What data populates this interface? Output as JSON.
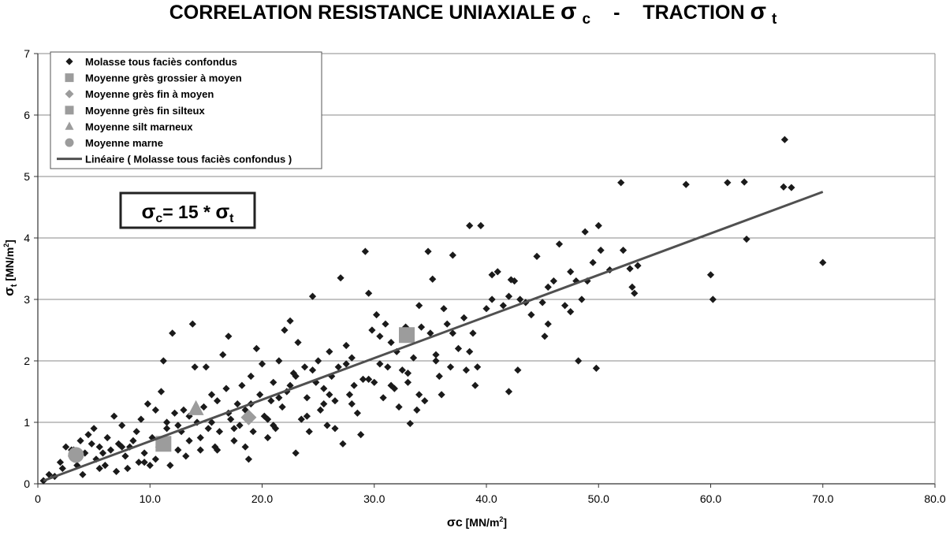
{
  "chart_data": {
    "type": "scatter",
    "title": {
      "part1": "CORRELATION  RESISTANCE UNIAXIALE",
      "sym1": "σ",
      "sub1": "c",
      "sep": "-",
      "part2": "TRACTION",
      "sym2": "σ",
      "sub2": "t"
    },
    "xlabel": {
      "sym": "σc",
      "text": " [MN/m",
      "sup": "2",
      "close": "]"
    },
    "ylabel": {
      "sym": "σ",
      "sub": "t",
      "text": " [MN/m",
      "sup": "2",
      "close": "]"
    },
    "xlim": [
      0,
      80
    ],
    "ylim": [
      0,
      7
    ],
    "x_ticks": [
      "0",
      "10.0",
      "20.0",
      "30.0",
      "40.0",
      "50.0",
      "60.0",
      "70.0",
      "80.0"
    ],
    "y_ticks": [
      "0",
      "1",
      "2",
      "3",
      "4",
      "5",
      "6",
      "7"
    ],
    "grid": "horizontal",
    "legend_position": "top-left",
    "annotation": {
      "sym": "σ",
      "sub": "c",
      "mid": "= 15 * ",
      "sym2": "σ",
      "sub2": "t"
    },
    "colors": {
      "molasse": "#1a1a1a",
      "moyenne": "#9c9c9c",
      "trend": "#505050"
    },
    "series": [
      {
        "name": " Molasse tous faciès confondus",
        "marker": "diamond",
        "points": [
          [
            0.5,
            0.05
          ],
          [
            1.0,
            0.15
          ],
          [
            1.5,
            0.12
          ],
          [
            2.0,
            0.35
          ],
          [
            2.2,
            0.25
          ],
          [
            2.5,
            0.6
          ],
          [
            3.0,
            0.45
          ],
          [
            3.2,
            0.55
          ],
          [
            3.5,
            0.3
          ],
          [
            3.8,
            0.7
          ],
          [
            4.0,
            0.15
          ],
          [
            4.2,
            0.5
          ],
          [
            4.5,
            0.8
          ],
          [
            4.8,
            0.65
          ],
          [
            5.0,
            0.9
          ],
          [
            5.2,
            0.4
          ],
          [
            5.5,
            0.6
          ],
          [
            5.8,
            0.5
          ],
          [
            6.0,
            0.3
          ],
          [
            6.2,
            0.75
          ],
          [
            6.5,
            0.55
          ],
          [
            6.8,
            1.1
          ],
          [
            7.0,
            0.2
          ],
          [
            7.2,
            0.65
          ],
          [
            7.5,
            0.95
          ],
          [
            7.8,
            0.45
          ],
          [
            8.0,
            0.25
          ],
          [
            8.2,
            0.6
          ],
          [
            8.5,
            0.7
          ],
          [
            8.8,
            0.85
          ],
          [
            9.0,
            0.35
          ],
          [
            9.2,
            1.05
          ],
          [
            9.5,
            0.5
          ],
          [
            9.8,
            1.3
          ],
          [
            10.0,
            0.3
          ],
          [
            10.2,
            0.75
          ],
          [
            10.5,
            1.2
          ],
          [
            10.8,
            0.6
          ],
          [
            11.0,
            1.5
          ],
          [
            11.2,
            2.0
          ],
          [
            11.5,
            0.9
          ],
          [
            11.8,
            0.3
          ],
          [
            12.0,
            2.45
          ],
          [
            12.2,
            1.15
          ],
          [
            12.5,
            0.55
          ],
          [
            12.8,
            0.85
          ],
          [
            13.0,
            1.2
          ],
          [
            13.2,
            0.45
          ],
          [
            13.5,
            0.7
          ],
          [
            13.8,
            2.6
          ],
          [
            14.0,
            1.9
          ],
          [
            14.2,
            1.0
          ],
          [
            14.5,
            0.55
          ],
          [
            14.8,
            1.25
          ],
          [
            15.0,
            1.9
          ],
          [
            15.2,
            0.9
          ],
          [
            15.5,
            1.45
          ],
          [
            15.8,
            0.6
          ],
          [
            16.0,
            1.35
          ],
          [
            16.2,
            0.85
          ],
          [
            16.5,
            2.1
          ],
          [
            16.8,
            1.55
          ],
          [
            17.0,
            2.4
          ],
          [
            17.2,
            1.05
          ],
          [
            17.5,
            0.7
          ],
          [
            17.8,
            1.3
          ],
          [
            18.0,
            0.95
          ],
          [
            18.2,
            1.6
          ],
          [
            18.5,
            1.2
          ],
          [
            18.8,
            0.4
          ],
          [
            19.0,
            1.75
          ],
          [
            19.2,
            0.85
          ],
          [
            19.5,
            2.2
          ],
          [
            19.8,
            1.45
          ],
          [
            20.0,
            1.95
          ],
          [
            20.2,
            1.1
          ],
          [
            20.5,
            0.75
          ],
          [
            20.8,
            1.35
          ],
          [
            21.0,
            1.65
          ],
          [
            21.2,
            0.9
          ],
          [
            21.5,
            2.0
          ],
          [
            21.8,
            1.25
          ],
          [
            22.0,
            2.5
          ],
          [
            22.2,
            1.5
          ],
          [
            22.5,
            2.65
          ],
          [
            22.8,
            1.8
          ],
          [
            23.0,
            0.5
          ],
          [
            23.2,
            2.3
          ],
          [
            23.5,
            1.05
          ],
          [
            23.8,
            1.9
          ],
          [
            24.0,
            1.4
          ],
          [
            24.2,
            0.85
          ],
          [
            24.5,
            3.05
          ],
          [
            24.8,
            1.65
          ],
          [
            25.0,
            2.0
          ],
          [
            25.2,
            1.2
          ],
          [
            25.5,
            1.55
          ],
          [
            25.8,
            0.95
          ],
          [
            26.0,
            2.15
          ],
          [
            26.2,
            1.75
          ],
          [
            26.5,
            1.35
          ],
          [
            26.8,
            1.9
          ],
          [
            27.0,
            3.35
          ],
          [
            27.2,
            0.65
          ],
          [
            27.5,
            2.25
          ],
          [
            27.8,
            1.45
          ],
          [
            28.0,
            2.05
          ],
          [
            28.2,
            1.6
          ],
          [
            28.5,
            1.15
          ],
          [
            28.8,
            0.8
          ],
          [
            29.0,
            1.7
          ],
          [
            29.2,
            3.78
          ],
          [
            29.5,
            3.1
          ],
          [
            29.8,
            2.5
          ],
          [
            30.0,
            1.65
          ],
          [
            30.2,
            2.75
          ],
          [
            30.5,
            2.4
          ],
          [
            30.8,
            1.4
          ],
          [
            31.0,
            2.6
          ],
          [
            31.2,
            1.9
          ],
          [
            31.5,
            2.3
          ],
          [
            31.8,
            1.55
          ],
          [
            32.0,
            2.15
          ],
          [
            32.2,
            1.25
          ],
          [
            32.5,
            1.85
          ],
          [
            32.8,
            2.55
          ],
          [
            33.0,
            1.65
          ],
          [
            33.2,
            0.98
          ],
          [
            33.5,
            2.05
          ],
          [
            33.8,
            1.2
          ],
          [
            34.0,
            2.9
          ],
          [
            34.2,
            2.55
          ],
          [
            34.5,
            1.35
          ],
          [
            34.8,
            3.78
          ],
          [
            35.0,
            2.45
          ],
          [
            35.2,
            3.33
          ],
          [
            35.5,
            2.0
          ],
          [
            35.8,
            1.75
          ],
          [
            36.0,
            1.45
          ],
          [
            36.2,
            2.85
          ],
          [
            36.5,
            2.6
          ],
          [
            36.8,
            1.9
          ],
          [
            37.0,
            3.72
          ],
          [
            37.5,
            2.2
          ],
          [
            38.0,
            2.7
          ],
          [
            38.2,
            1.85
          ],
          [
            38.5,
            4.2
          ],
          [
            38.8,
            2.45
          ],
          [
            39.0,
            1.6
          ],
          [
            39.2,
            1.9
          ],
          [
            39.5,
            4.2
          ],
          [
            40.0,
            2.85
          ],
          [
            40.5,
            3.4
          ],
          [
            41.0,
            3.45
          ],
          [
            41.5,
            2.9
          ],
          [
            42.0,
            1.5
          ],
          [
            42.2,
            3.32
          ],
          [
            42.5,
            3.3
          ],
          [
            42.8,
            1.85
          ],
          [
            43.0,
            3.0
          ],
          [
            44.0,
            2.75
          ],
          [
            44.5,
            3.7
          ],
          [
            45.0,
            2.95
          ],
          [
            45.2,
            2.4
          ],
          [
            45.5,
            2.6
          ],
          [
            46.0,
            3.3
          ],
          [
            46.5,
            3.9
          ],
          [
            47.0,
            2.9
          ],
          [
            47.5,
            3.45
          ],
          [
            48.0,
            3.3
          ],
          [
            48.2,
            2.0
          ],
          [
            48.5,
            3.0
          ],
          [
            48.8,
            4.1
          ],
          [
            49.0,
            3.3
          ],
          [
            49.5,
            3.6
          ],
          [
            49.8,
            1.88
          ],
          [
            50.0,
            4.2
          ],
          [
            50.2,
            3.8
          ],
          [
            51.0,
            3.48
          ],
          [
            52.0,
            4.9
          ],
          [
            52.2,
            3.8
          ],
          [
            52.8,
            3.5
          ],
          [
            53.0,
            3.2
          ],
          [
            53.2,
            3.1
          ],
          [
            53.5,
            3.55
          ],
          [
            57.8,
            4.87
          ],
          [
            60.0,
            3.4
          ],
          [
            60.2,
            3.0
          ],
          [
            61.5,
            4.9
          ],
          [
            63.0,
            4.91
          ],
          [
            63.2,
            3.98
          ],
          [
            66.5,
            4.83
          ],
          [
            66.6,
            5.6
          ],
          [
            67.2,
            4.82
          ],
          [
            70.0,
            3.6
          ],
          [
            3.0,
            0.55
          ],
          [
            5.5,
            0.25
          ],
          [
            7.5,
            0.6
          ],
          [
            9.5,
            0.35
          ],
          [
            10.5,
            0.4
          ],
          [
            12.5,
            0.95
          ],
          [
            14.5,
            0.75
          ],
          [
            16.0,
            0.55
          ],
          [
            17.5,
            0.9
          ],
          [
            18.5,
            0.6
          ],
          [
            20.5,
            1.05
          ],
          [
            21.5,
            1.4
          ],
          [
            23.0,
            1.75
          ],
          [
            24.0,
            1.1
          ],
          [
            25.5,
            1.3
          ],
          [
            26.5,
            0.9
          ],
          [
            28.0,
            1.3
          ],
          [
            29.5,
            1.7
          ],
          [
            30.5,
            1.95
          ],
          [
            31.5,
            1.6
          ],
          [
            33.0,
            1.8
          ],
          [
            34.0,
            1.45
          ],
          [
            35.5,
            2.1
          ],
          [
            37.0,
            2.45
          ],
          [
            38.5,
            2.15
          ],
          [
            40.5,
            3.0
          ],
          [
            42.0,
            3.05
          ],
          [
            43.5,
            2.95
          ],
          [
            45.5,
            3.2
          ],
          [
            47.5,
            2.8
          ],
          [
            11.5,
            1.0
          ],
          [
            13.5,
            1.1
          ],
          [
            15.5,
            1.0
          ],
          [
            17.0,
            1.15
          ],
          [
            19.0,
            1.3
          ],
          [
            21.0,
            0.95
          ],
          [
            22.5,
            1.6
          ],
          [
            24.5,
            1.85
          ],
          [
            26.0,
            1.45
          ],
          [
            27.5,
            1.95
          ]
        ]
      },
      {
        "name": "Moyenne grès grossier à moyen",
        "marker": "square",
        "points": [
          [
            32.9,
            2.42
          ]
        ]
      },
      {
        "name": "Moyenne grès fin à moyen",
        "marker": "diamond",
        "points": [
          [
            18.8,
            1.08
          ]
        ]
      },
      {
        "name": "Moyenne grès fin silteux",
        "marker": "square",
        "points": [
          [
            11.2,
            0.65
          ]
        ]
      },
      {
        "name": "Moyenne silt marneux",
        "marker": "triangle",
        "points": [
          [
            14.1,
            1.22
          ]
        ]
      },
      {
        "name": "Moyenne marne",
        "marker": "circle",
        "points": [
          [
            3.4,
            0.47
          ]
        ]
      }
    ],
    "trendline": {
      "name": "Linéaire ( Molasse tous faciès confondus )",
      "x": [
        0.5,
        70.0
      ],
      "y": [
        0.05,
        4.75
      ]
    }
  }
}
